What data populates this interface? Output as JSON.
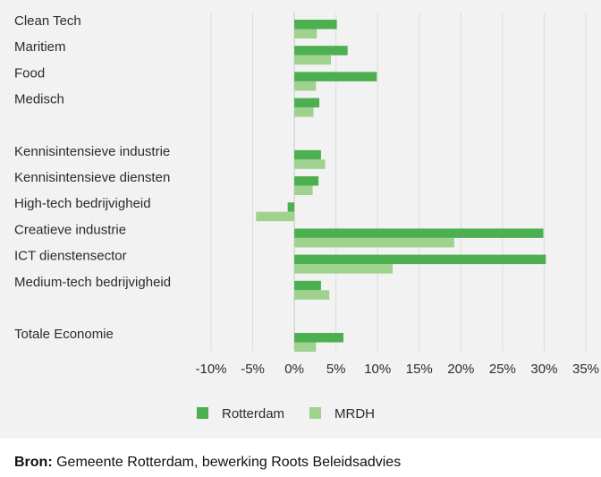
{
  "chart_data": {
    "type": "bar",
    "orientation": "horizontal",
    "categories": [
      "Clean Tech",
      "Maritiem",
      "Food",
      "Medisch",
      "Kennisintensieve industrie",
      "Kennisintensieve diensten",
      "High-tech bedrijvigheid",
      "Creatieve industrie",
      "ICT dienstensector",
      "Medium-tech bedrijvigheid",
      "Totale Economie"
    ],
    "groups": [
      [
        0,
        1,
        2,
        3
      ],
      [
        4,
        5,
        6,
        7,
        8,
        9
      ],
      [
        10
      ]
    ],
    "series": [
      {
        "name": "Rotterdam",
        "color": "#4caf50",
        "values": [
          5.1,
          6.4,
          9.9,
          3.0,
          3.2,
          2.9,
          -0.8,
          29.9,
          30.2,
          3.2,
          5.9
        ]
      },
      {
        "name": "MRDH",
        "color": "#9fd18f",
        "values": [
          2.7,
          4.4,
          2.6,
          2.3,
          3.7,
          2.2,
          -4.6,
          19.2,
          11.8,
          4.2,
          2.6
        ]
      }
    ],
    "xticks": [
      "-10%",
      "-5%",
      "0%",
      "5%",
      "10%",
      "15%",
      "20%",
      "25%",
      "30%",
      "35%"
    ],
    "xtick_values": [
      -10,
      -5,
      0,
      5,
      10,
      15,
      20,
      25,
      30,
      35
    ],
    "xlim": [
      -10,
      35
    ],
    "grid": "vertical",
    "legend_position": "bottom",
    "title": "",
    "xlabel": "",
    "ylabel": ""
  },
  "source": {
    "prefix": "Bron:",
    "text": " Gemeente Rotterdam, bewerking Roots Beleidsadvies"
  }
}
